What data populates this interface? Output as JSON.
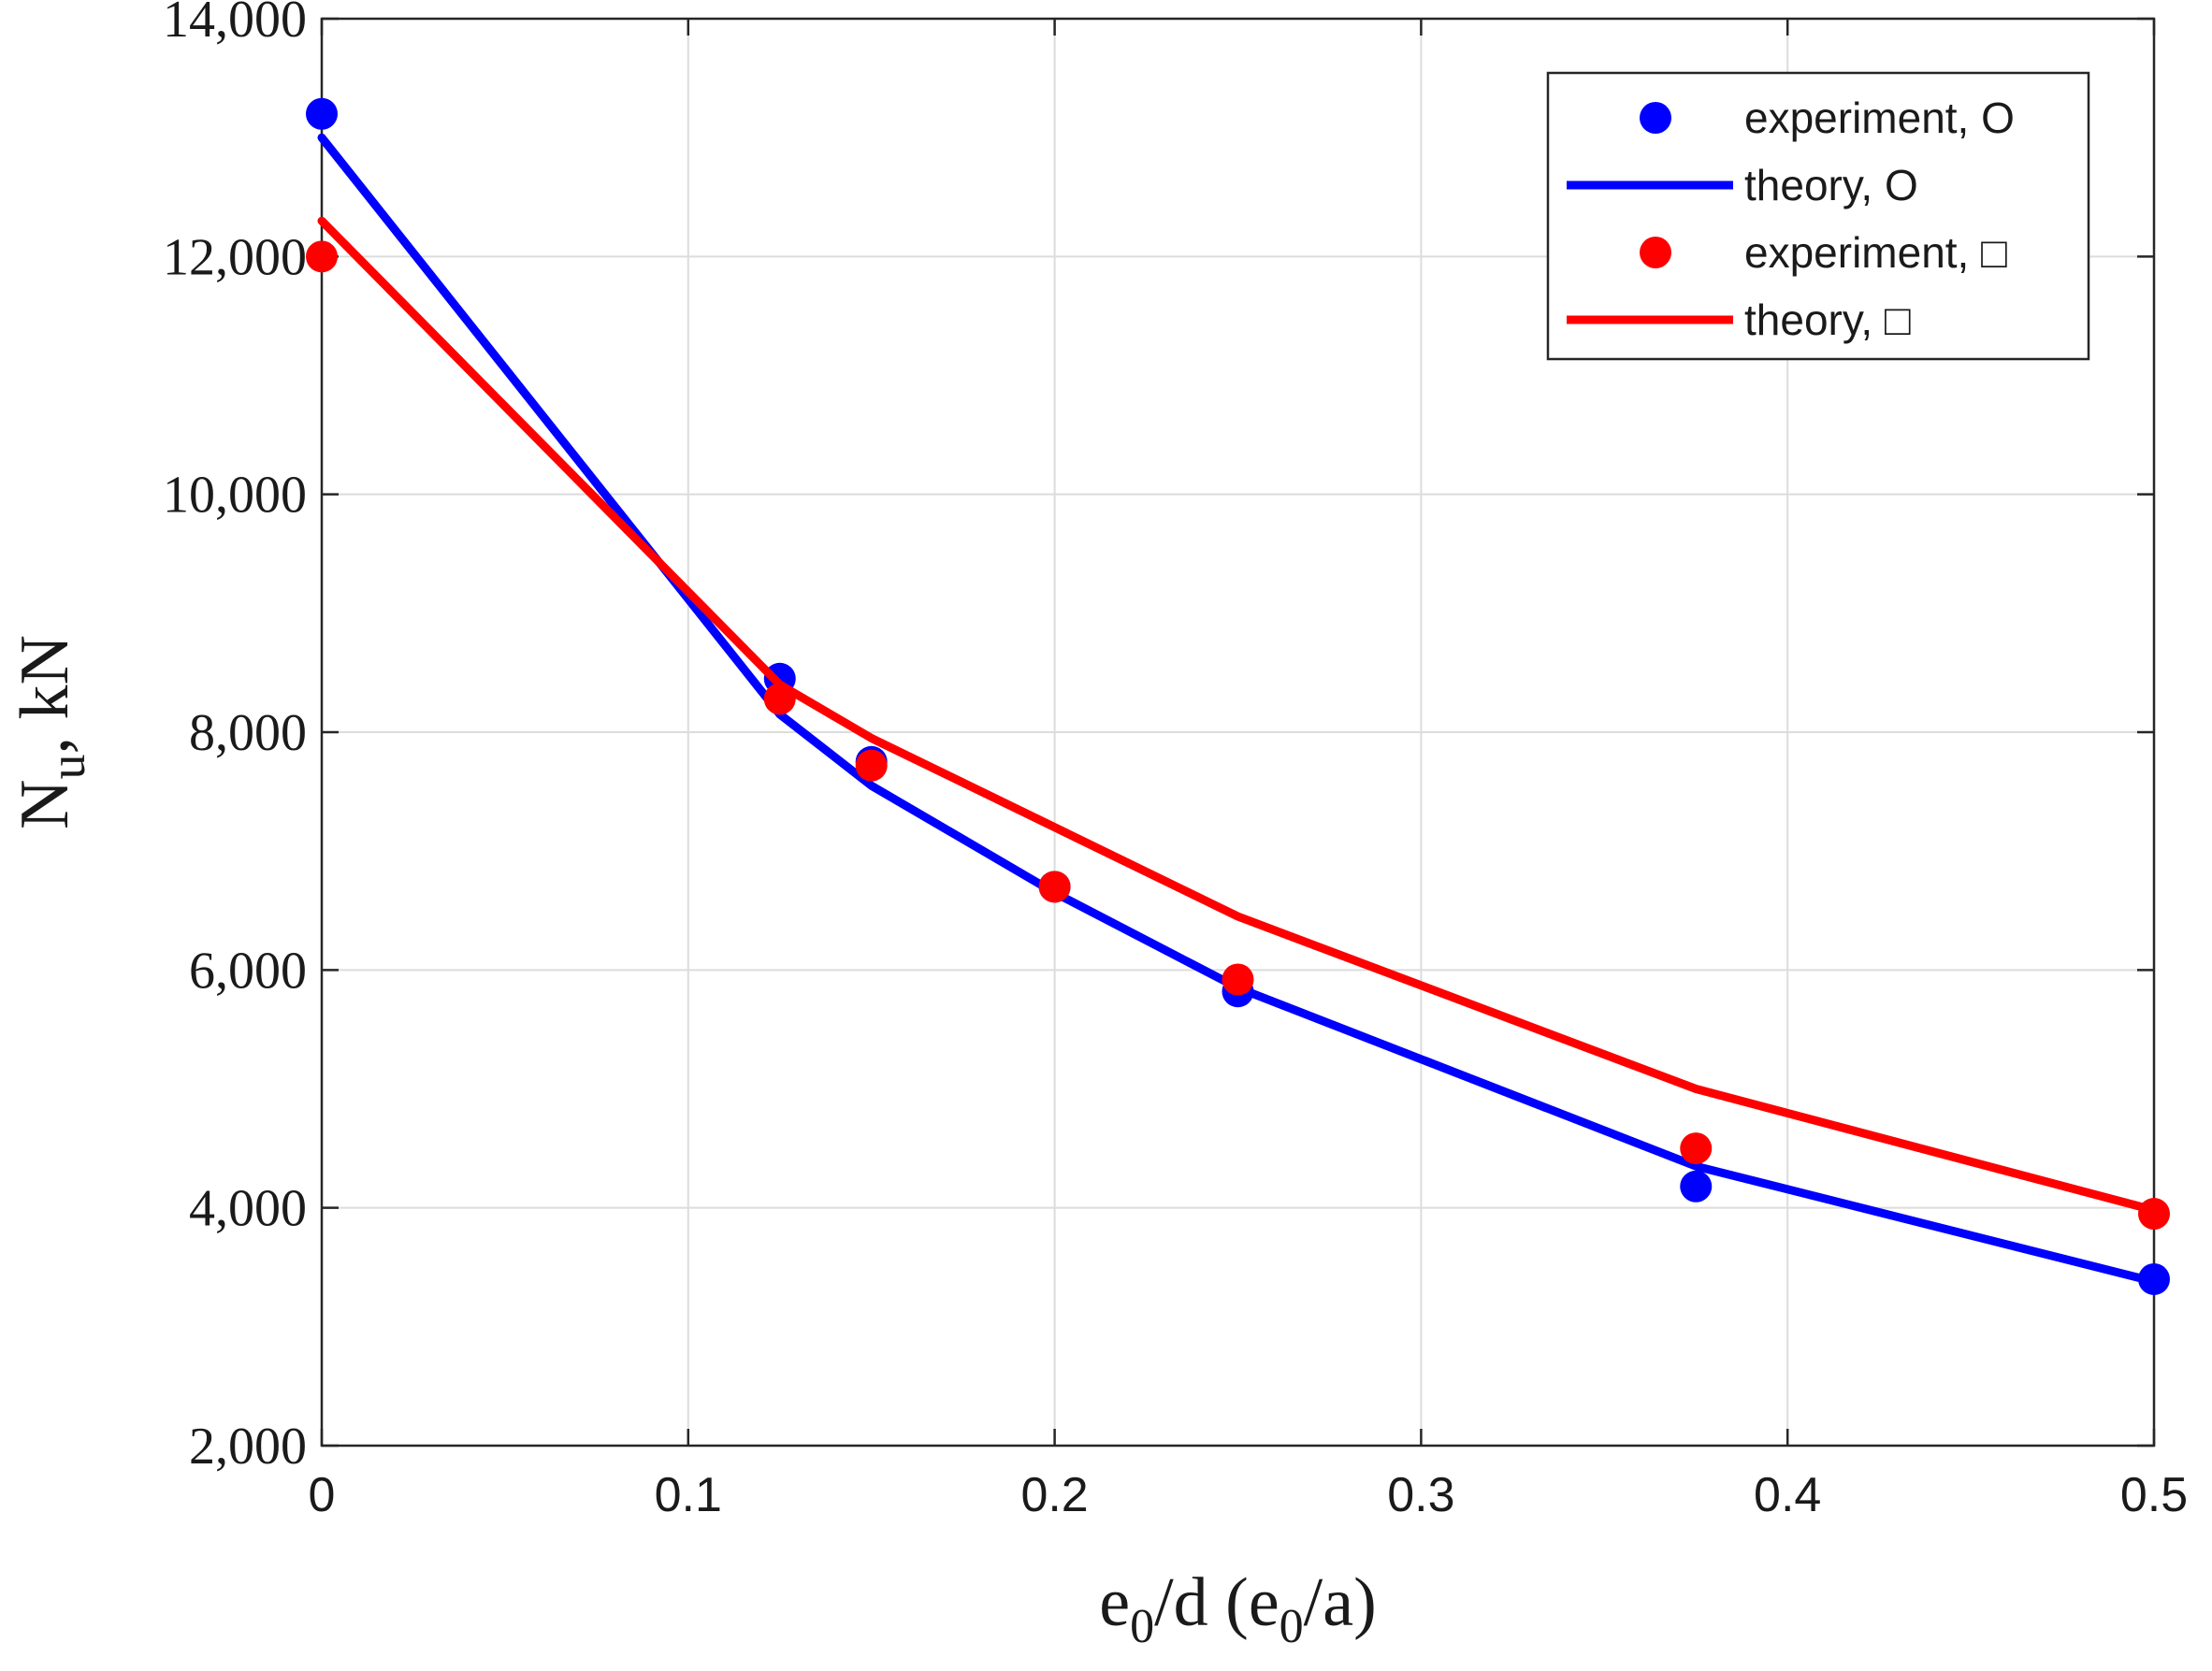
{
  "chart_data": {
    "type": "line",
    "title": "",
    "xlabel": "e0/d (e0/a)",
    "xlabel_parts": {
      "e1": "e",
      "s1": "0",
      "mid": "/d (e",
      "s2": "0",
      "end": "/a)"
    },
    "ylabel": "Nu, kN",
    "ylabel_parts": {
      "n": "N",
      "sub": "u",
      "rest": ", kN"
    },
    "xlim": [
      0,
      0.5
    ],
    "ylim": [
      2000,
      14000
    ],
    "xticks": [
      0,
      0.1,
      0.2,
      0.3,
      0.4,
      0.5
    ],
    "xtick_labels": [
      "0",
      "0.1",
      "0.2",
      "0.3",
      "0.4",
      "0.5"
    ],
    "yticks": [
      2000,
      4000,
      6000,
      8000,
      10000,
      12000,
      14000
    ],
    "ytick_labels": [
      "2,000",
      "4,000",
      "6,000",
      "8,000",
      "10,000",
      "12,000",
      "14,000"
    ],
    "grid": true,
    "legend_position": "top-right",
    "series": [
      {
        "name": "experiment, O",
        "kind": "scatter",
        "color": "#0000ff",
        "x": [
          0,
          0.125,
          0.15,
          0.2,
          0.25,
          0.375,
          0.5
        ],
        "y": [
          13200,
          8450,
          7750,
          6700,
          5820,
          4180,
          3400
        ]
      },
      {
        "name": "theory, O",
        "kind": "line",
        "color": "#0000ff",
        "x": [
          0,
          0.125,
          0.15,
          0.2,
          0.25,
          0.375,
          0.5
        ],
        "y": [
          13000,
          8150,
          7550,
          6650,
          5850,
          4350,
          3380
        ]
      },
      {
        "name": "experiment, □",
        "kind": "scatter",
        "color": "#ff0000",
        "x": [
          0,
          0.125,
          0.15,
          0.2,
          0.25,
          0.375,
          0.5
        ],
        "y": [
          12000,
          8280,
          7720,
          6700,
          5920,
          4500,
          3950
        ]
      },
      {
        "name": "theory, □",
        "kind": "line",
        "color": "#ff0000",
        "x": [
          0,
          0.125,
          0.15,
          0.2,
          0.25,
          0.375,
          0.5
        ],
        "y": [
          12300,
          8400,
          7950,
          7200,
          6450,
          5000,
          3980
        ]
      }
    ]
  }
}
